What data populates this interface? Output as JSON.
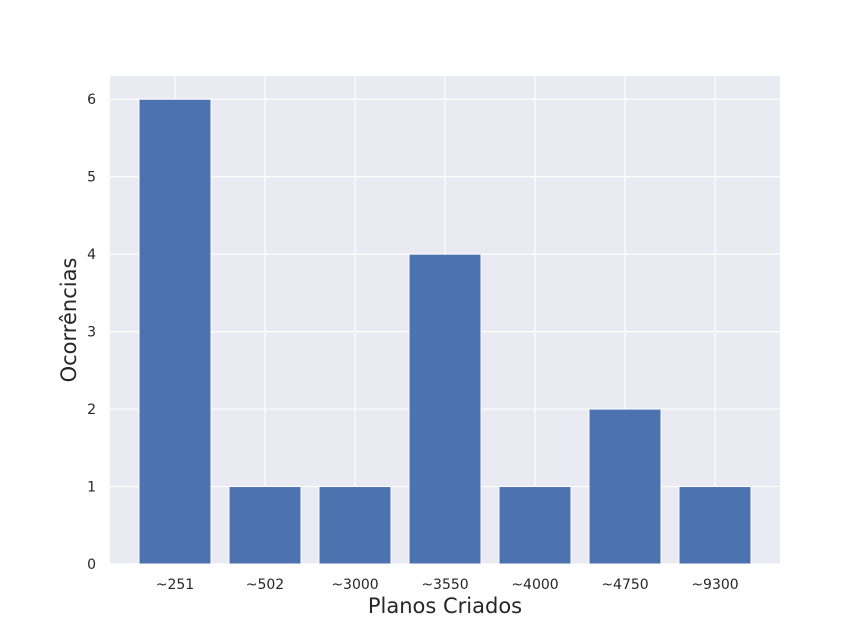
{
  "chart_data": {
    "type": "bar",
    "categories": [
      "~251",
      "~502",
      "~3000",
      "~3550",
      "~4000",
      "~4750",
      "~9300"
    ],
    "values": [
      6,
      1,
      1,
      4,
      1,
      2,
      1
    ],
    "title": "",
    "xlabel": "Planos Criados",
    "ylabel": "Ocorrências",
    "ylim": [
      0,
      6.3
    ],
    "yticks": [
      0,
      1,
      2,
      3,
      4,
      5,
      6
    ],
    "grid": true,
    "legend": "none",
    "colors": {
      "bar": "#4c72b0",
      "plot_background": "#eaeaf2",
      "grid": "#ffffff",
      "text": "#262626"
    }
  }
}
